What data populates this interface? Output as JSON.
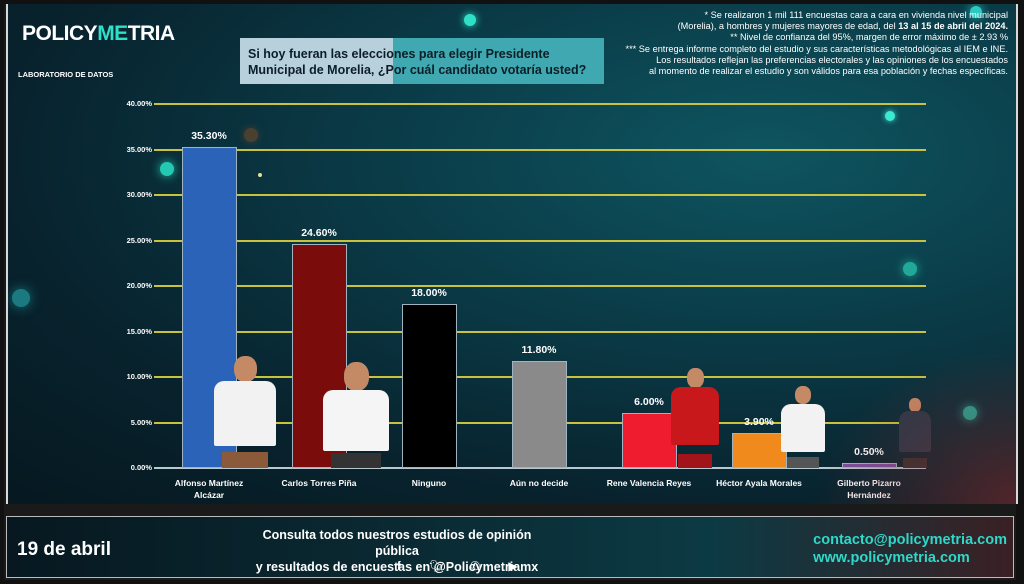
{
  "header": {
    "logo_main": "POLICY",
    "logo_accent": "ME",
    "logo_tail": "TRIA",
    "subtitle": "LABORATORIO DE DATOS",
    "question": "Si hoy fueran las elecciones para elegir Presidente Municipal de Morelia, ¿Por cuál candidato votaría usted?"
  },
  "notes": {
    "line1": "* Se realizaron 1 mil 111 encuestas cara a cara en vivienda nivel municipal",
    "line2a": "(Morelia), a hombres y mujeres mayores de edad, del ",
    "line2b": "13 al 15 de abril del 2024.",
    "line3": "** Nivel de confianza del 95%, margen de error máximo de ± 2.93 %",
    "line4": "*** Se entrega informe completo del estudio y sus características metodológicas al IEM e INE.",
    "line5": "Los resultados reflejan las preferencias electorales y las opiniones de los encuestados",
    "line6": "al momento de realizar el estudio y son válidos para esa población y fechas específicas."
  },
  "chart_data": {
    "type": "bar",
    "title": "Si hoy fueran las elecciones para elegir Presidente Municipal de Morelia, ¿Por cuál candidato votaría usted?",
    "xlabel": "",
    "ylabel": "",
    "ylim": [
      0,
      40
    ],
    "yticks": [
      "0.00%",
      "5.00%",
      "10.00%",
      "15.00%",
      "20.00%",
      "25.00%",
      "30.00%",
      "35.00%",
      "40.00%"
    ],
    "grid": true,
    "legend": "none",
    "categories": [
      "Alfonso Martínez Alcázar",
      "Carlos Torres Piña",
      "Ninguno",
      "Aún no decide",
      "Rene Valencia Reyes",
      "Héctor Ayala Morales",
      "Gilberto Pizarro Hernández"
    ],
    "category_lines": [
      [
        "Alfonso Martínez",
        "Alcázar"
      ],
      [
        "Carlos Torres Piña"
      ],
      [
        "Ninguno"
      ],
      [
        "Aún no decide"
      ],
      [
        "Rene Valencia Reyes"
      ],
      [
        "Héctor Ayala Morales"
      ],
      [
        "Gilberto Pizarro",
        "Hernández"
      ]
    ],
    "values": [
      35.3,
      24.6,
      18.0,
      11.8,
      6.0,
      3.9,
      0.5
    ],
    "value_labels": [
      "35.30%",
      "24.60%",
      "18.00%",
      "11.80%",
      "6.00%",
      "3.90%",
      "0.50%"
    ],
    "colors": [
      "#2a63b8",
      "#7a0c0c",
      "#000000",
      "#8a8a8a",
      "#ee1c2e",
      "#f08a1c",
      "#7a4fa0"
    ]
  },
  "footer": {
    "date": "19 de abril",
    "consult_line1": "Consulta todos nuestros estudios de opinión pública",
    "consult_line2": "y resultados de encuestas en @Policymetriamx",
    "social_icons": [
      "facebook-icon",
      "twitter-icon",
      "whatsapp-icon",
      "youtube-icon"
    ],
    "email": "contacto@policymetria.com",
    "website": "www.policymetria.com"
  },
  "colors": {
    "grid": "#c9c23a",
    "accent": "#2fd8c8",
    "background": "#0a3c48"
  }
}
